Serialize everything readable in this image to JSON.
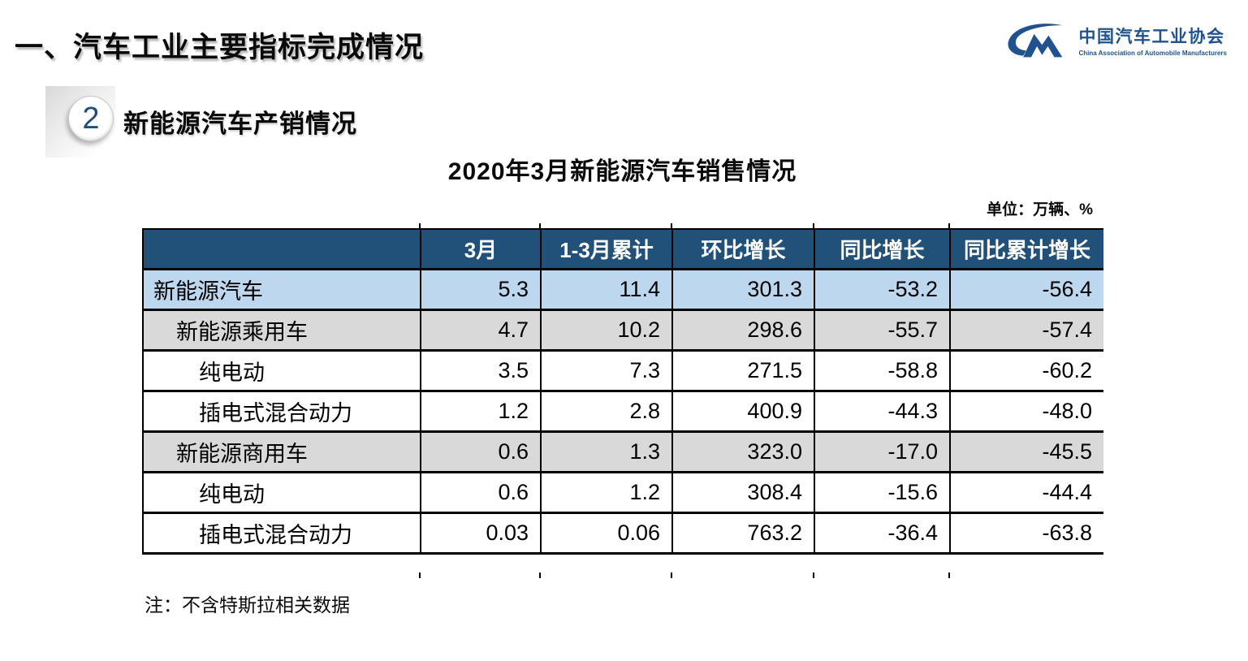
{
  "page": {
    "title": "一、汽车工业主要指标完成情况",
    "section_number": "2",
    "section_title": "新能源汽车产销情况",
    "table_title": "2020年3月新能源汽车销售情况",
    "unit_label": "单位：万辆、%",
    "note": "注：不含特斯拉相关数据"
  },
  "logo": {
    "name_cn": "中国汽车工业协会",
    "name_en": "China Association of Automobile Manufacturers",
    "color": "#1F528F"
  },
  "colors": {
    "table_header_bg": "#215078",
    "row_highlight": "#BDD7EE",
    "row_subtotal": "#D9D9D9",
    "row_default": "#FFFFFF",
    "badge_number": "#1F4E79"
  },
  "table": {
    "columns": [
      "",
      "3月",
      "1-3月累计",
      "环比增长",
      "同比增长",
      "同比累计增长"
    ],
    "rows": [
      {
        "label": "新能源汽车",
        "level": 1,
        "style": "highlight",
        "values": [
          "5.3",
          "11.4",
          "301.3",
          "-53.2",
          "-56.4"
        ]
      },
      {
        "label": "新能源乘用车",
        "level": 2,
        "style": "subtotal",
        "values": [
          "4.7",
          "10.2",
          "298.6",
          "-55.7",
          "-57.4"
        ]
      },
      {
        "label": "纯电动",
        "level": 3,
        "style": "default",
        "values": [
          "3.5",
          "7.3",
          "271.5",
          "-58.8",
          "-60.2"
        ]
      },
      {
        "label": "插电式混合动力",
        "level": 3,
        "style": "default",
        "values": [
          "1.2",
          "2.8",
          "400.9",
          "-44.3",
          "-48.0"
        ]
      },
      {
        "label": "新能源商用车",
        "level": 2,
        "style": "subtotal",
        "values": [
          "0.6",
          "1.3",
          "323.0",
          "-17.0",
          "-45.5"
        ]
      },
      {
        "label": "纯电动",
        "level": 3,
        "style": "default",
        "values": [
          "0.6",
          "1.2",
          "308.4",
          "-15.6",
          "-44.4"
        ]
      },
      {
        "label": "插电式混合动力",
        "level": 3,
        "style": "default",
        "values": [
          "0.03",
          "0.06",
          "763.2",
          "-36.4",
          "-63.8"
        ]
      }
    ]
  }
}
